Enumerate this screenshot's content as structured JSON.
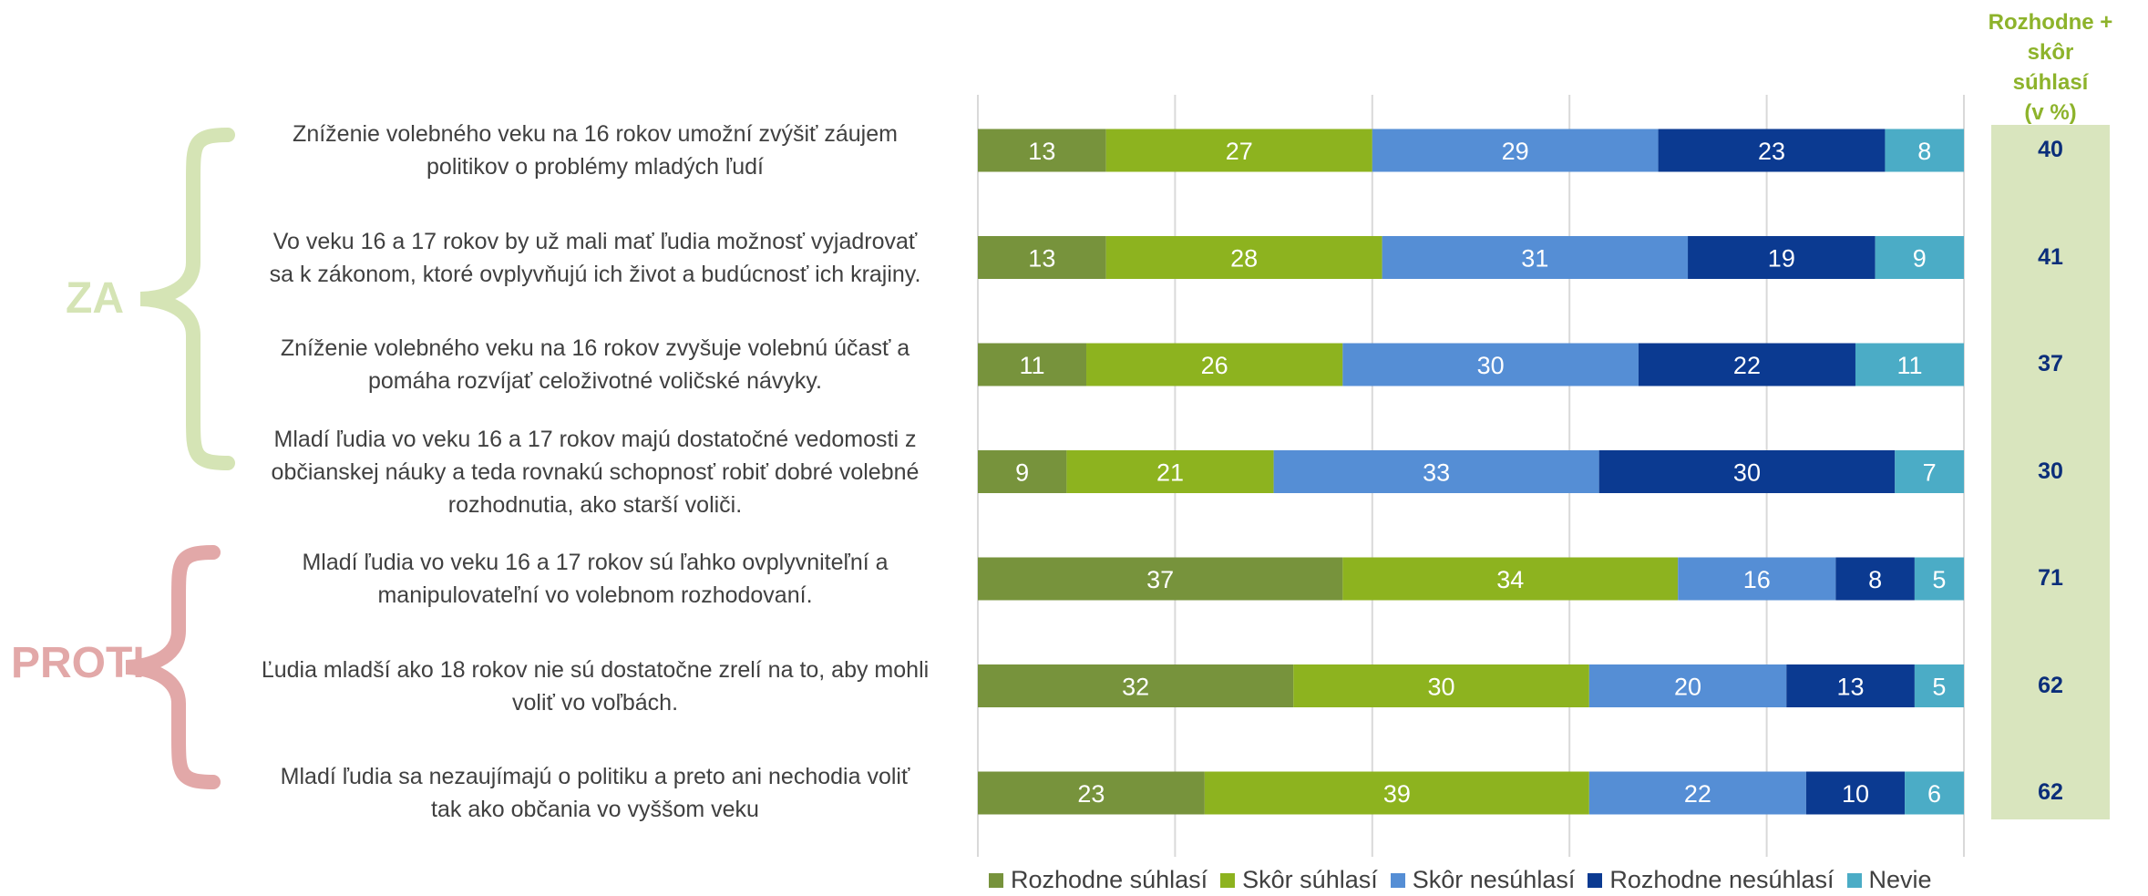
{
  "groups": {
    "za": {
      "label": "ZA",
      "color": "#D5E4B5"
    },
    "proti": {
      "label": "PROTI",
      "color": "#E2A8A8"
    }
  },
  "right_header": {
    "line1": "Rozhodne + skôr",
    "line2": "súhlasí",
    "line3": "(v %)"
  },
  "chart_data": {
    "type": "bar",
    "orientation": "horizontal",
    "stacked": true,
    "xlim": [
      0,
      100
    ],
    "grid": true,
    "legend_position": "bottom",
    "categories": [
      [
        "Zníženie volebného veku na 16 rokov umožní zvýšiť záujem",
        "politikov o problémy mladých ľudí"
      ],
      [
        "Vo veku 16 a 17 rokov by už mali mať ľudia možnosť vyjadrovať",
        "sa k zákonom, ktoré ovplyvňujú ich život a budúcnosť ich krajiny."
      ],
      [
        "Zníženie volebného veku na 16 rokov zvyšuje volebnú účasť a",
        "pomáha rozvíjať celoživotné voličské návyky."
      ],
      [
        "Mladí ľudia vo veku 16 a 17 rokov majú dostatočné vedomosti z",
        "občianskej náuky a teda rovnakú schopnosť robiť dobré volebné",
        "rozhodnutia, ako starší voliči."
      ],
      [
        "Mladí ľudia vo veku 16 a 17 rokov sú ľahko ovplyvniteľní a",
        "manipulovateľní vo volebnom rozhodovaní."
      ],
      [
        "Ľudia mladší ako 18 rokov nie sú dostatočne zrelí na to, aby mohli",
        "voliť vo voľbách."
      ],
      [
        "Mladí ľudia sa nezaujímajú o politiku a preto ani nechodia voliť",
        "tak ako občania vo vyššom veku"
      ]
    ],
    "series": [
      {
        "name": "Rozhodne súhlasí",
        "color": "#77933C",
        "values": [
          13,
          13,
          11,
          9,
          37,
          32,
          23
        ]
      },
      {
        "name": "Skôr súhlasí",
        "color": "#8DB31F",
        "values": [
          27,
          28,
          26,
          21,
          34,
          30,
          39
        ]
      },
      {
        "name": "Skôr nesúhlasí",
        "color": "#558ED5",
        "values": [
          29,
          31,
          30,
          33,
          16,
          20,
          22
        ]
      },
      {
        "name": "Rozhodne nesúhlasí",
        "color": "#0B3A91",
        "values": [
          23,
          19,
          22,
          30,
          8,
          13,
          10
        ]
      },
      {
        "name": "Nevie",
        "color": "#4BACC6",
        "values": [
          8,
          9,
          11,
          7,
          5,
          5,
          6
        ]
      }
    ],
    "agree_total": [
      40,
      41,
      37,
      30,
      71,
      62,
      62
    ]
  }
}
